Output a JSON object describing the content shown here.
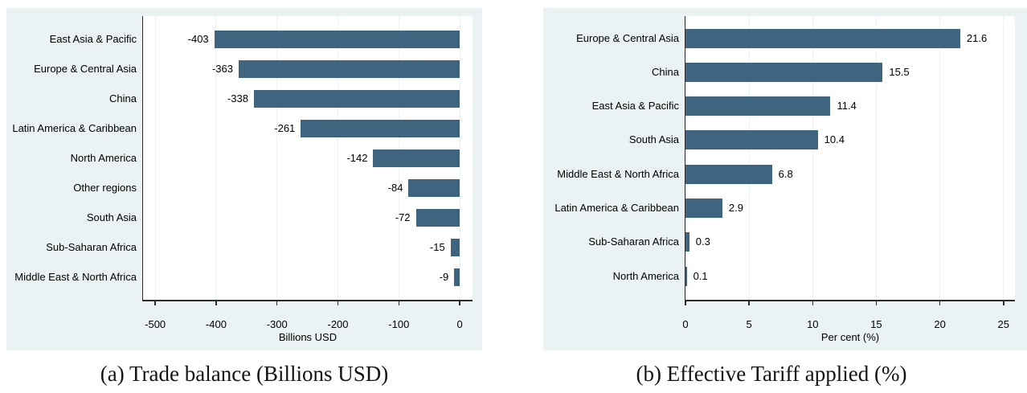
{
  "page": {
    "background": "#ffffff",
    "figure_bg": "#eaf2f3",
    "plot_bg": "#ffffff",
    "bar_color": "#3e6480",
    "grid_color": "#e9f3f2",
    "axis_color": "#2b2b2b"
  },
  "chart_data": [
    {
      "type": "bar",
      "orientation": "horizontal",
      "caption": "(a) Trade balance (Billions USD)",
      "categories": [
        "East Asia & Pacific",
        "Europe & Central Asia",
        "China",
        "Latin America & Caribbean",
        "North America",
        "Other regions",
        "South Asia",
        "Sub-Saharan Africa",
        "Middle East & North Africa"
      ],
      "values": [
        -403,
        -363,
        -338,
        -261,
        -142,
        -84,
        -72,
        -15,
        -9
      ],
      "value_labels": [
        "-403",
        "-363",
        "-338",
        "-261",
        "-142",
        "-84",
        "-72",
        "-15",
        "-9"
      ],
      "xlabel": "Billions USD",
      "xticks": [
        -500,
        -400,
        -300,
        -200,
        -100,
        0
      ],
      "xtick_labels": [
        "-500",
        "-400",
        "-300",
        "-200",
        "-100",
        "0"
      ],
      "xlim": [
        -520,
        21
      ],
      "grid": true,
      "legend": "none",
      "bar_color": "#3e6480"
    },
    {
      "type": "bar",
      "orientation": "horizontal",
      "caption": "(b) Effective Tariff applied (%)",
      "categories": [
        "Europe & Central Asia",
        "China",
        "East Asia & Pacific",
        "South Asia",
        "Middle East & North Africa",
        "Latin America & Caribbean",
        "Sub-Saharan Africa",
        "North America"
      ],
      "values": [
        21.6,
        15.5,
        11.4,
        10.4,
        6.8,
        2.9,
        0.3,
        0.1
      ],
      "value_labels": [
        "21.6",
        "15.5",
        "11.4",
        "10.4",
        "6.8",
        "2.9",
        "0.3",
        "0.1"
      ],
      "xlabel": "Per cent (%)",
      "xticks": [
        0,
        5,
        10,
        15,
        20,
        25
      ],
      "xtick_labels": [
        "0",
        "5",
        "10",
        "15",
        "20",
        "25"
      ],
      "xlim": [
        0,
        25.9
      ],
      "grid": true,
      "legend": "none",
      "bar_color": "#3e6480"
    }
  ]
}
